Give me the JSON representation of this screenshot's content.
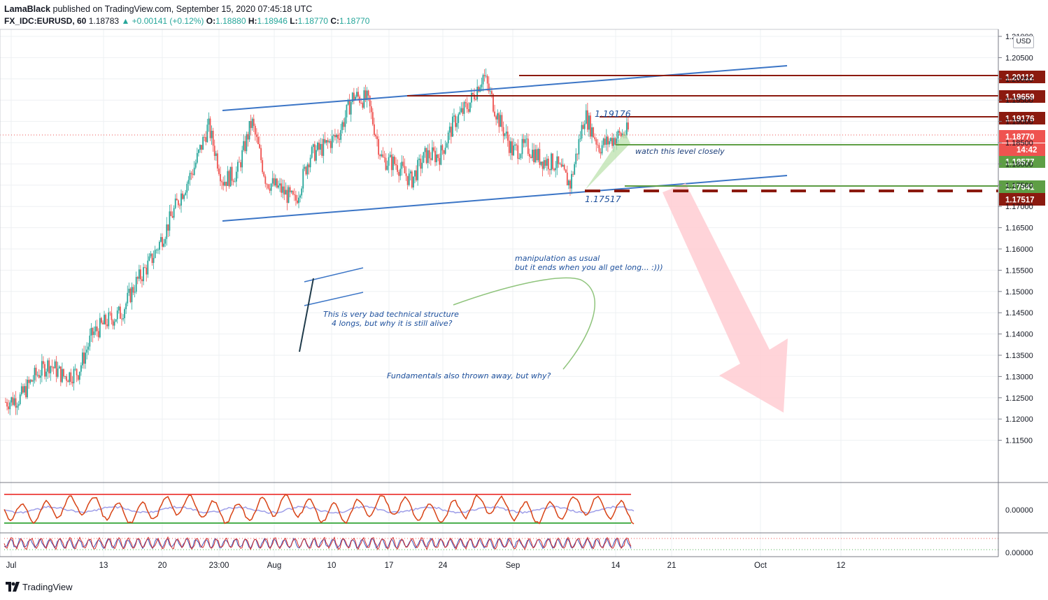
{
  "header": {
    "author": "LamaBlack",
    "published_text": " published on TradingView.com, September 15, 2020 07:45:18 UTC",
    "symbol": "FX_IDC:EURUSD, 60",
    "last": "1.18783",
    "change": "+0.00141 (+0.12%)",
    "o_label": "O:",
    "o_value": "1.18880",
    "h_label": "H:",
    "h_value": "1.18946",
    "l_label": "L:",
    "l_value": "1.18770",
    "c_label": "C:",
    "c_value": "1.18770"
  },
  "currency": "USD",
  "footer": {
    "brand": "TradingView"
  },
  "colors": {
    "up": "#26a69a",
    "down": "#ef5350",
    "trend": "#3b75c6",
    "level_red": "#8b1a0f",
    "level_green": "#5e9e45",
    "arrow": "#ffcdd2",
    "annotation": "#1c4f9c"
  },
  "chart_data": {
    "type": "candlestick",
    "symbol": "FX_IDC:EURUSD",
    "interval": "60",
    "ylim": [
      1.11,
      1.21
    ],
    "y_ticks": [
      "1.21000",
      "1.20500",
      "1.20000",
      "1.19500",
      "1.19000",
      "1.18500",
      "1.18000",
      "1.17500",
      "1.17000",
      "1.16500",
      "1.16000",
      "1.15500",
      "1.15000",
      "1.14500",
      "1.14000",
      "1.13500",
      "1.13000",
      "1.12500",
      "1.12000",
      "1.11500"
    ],
    "x_ticks": [
      "Jul",
      "13",
      "20",
      "23:00",
      "Aug",
      "10",
      "17",
      "24",
      "Sep",
      "14",
      "21",
      "Oct",
      "12"
    ],
    "price_trace": [
      [
        "Jul",
        1.124
      ],
      [
        "Jul 3",
        1.125
      ],
      [
        "Jul 6",
        1.13
      ],
      [
        "Jul 8",
        1.133
      ],
      [
        "Jul 10",
        1.13
      ],
      [
        "13",
        1.131
      ],
      [
        "Jul 15",
        1.14
      ],
      [
        "Jul 17",
        1.143
      ],
      [
        "20",
        1.145
      ],
      [
        "Jul 21",
        1.152
      ],
      [
        "Jul 22",
        1.157
      ],
      [
        "23:00",
        1.164
      ],
      [
        "Jul 28",
        1.172
      ],
      [
        "Jul 30",
        1.179
      ],
      [
        "Jul 31",
        1.189
      ],
      [
        "Aug",
        1.176
      ],
      [
        "Aug 4",
        1.178
      ],
      [
        "Aug 6",
        1.19
      ],
      [
        "Aug 7",
        1.176
      ],
      [
        "10",
        1.174
      ],
      [
        "Aug 12",
        1.171
      ],
      [
        "Aug 13",
        1.182
      ],
      [
        "Aug 14",
        1.184
      ],
      [
        "17",
        1.187
      ],
      [
        "Aug 18",
        1.196
      ],
      [
        "Aug 19",
        1.195
      ],
      [
        "Aug 20",
        1.181
      ],
      [
        "Aug 21",
        1.18
      ],
      [
        "24",
        1.176
      ],
      [
        "Aug 25",
        1.182
      ],
      [
        "Aug 27",
        1.182
      ],
      [
        "Aug 28",
        1.19
      ],
      [
        "Aug 31",
        1.194
      ],
      [
        "Sep",
        1.201
      ],
      [
        "Sep 2",
        1.191
      ],
      [
        "Sep 3",
        1.183
      ],
      [
        "Sep 4",
        1.184
      ],
      [
        "Sep 7",
        1.181
      ],
      [
        "Sep 9",
        1.18
      ],
      [
        "Sep 10",
        1.1752
      ],
      [
        "Sep 10b",
        1.1917
      ],
      [
        "Sep 11",
        1.184
      ],
      [
        "14",
        1.186
      ],
      [
        "Sep 15",
        1.1877
      ]
    ],
    "levels": [
      {
        "value": 1.20112,
        "label": "1.20112",
        "color": "#8b1a0f"
      },
      {
        "value": 1.19659,
        "label": "1.19659",
        "color": "#8b1a0f"
      },
      {
        "value": 1.19176,
        "label": "1.19176",
        "color": "#8b1a0f"
      },
      {
        "value": 1.1877,
        "label": "1.18770",
        "color": "#ef5350"
      },
      {
        "value": 1.18577,
        "label": "1.18577",
        "color": "#5e9e45"
      },
      {
        "value": 1.17641,
        "label": "1.17641",
        "color": "#5e9e45"
      },
      {
        "value": 1.17517,
        "label": "1.17517",
        "color": "#8b1a0f"
      }
    ],
    "countdown": "14:42",
    "price_annotations": [
      "1.19176",
      "1.17517"
    ],
    "annotations": [
      "watch this level closely",
      "manipulation as usual",
      "but it ends when you all get long... :)))",
      "This is very bad technical structure",
      "4 longs, but why it is still alive?",
      "Fundamentals also thrown away, but why?"
    ],
    "oscillator_ticks": [
      "0.00000",
      "0.00000"
    ],
    "grid": true
  }
}
